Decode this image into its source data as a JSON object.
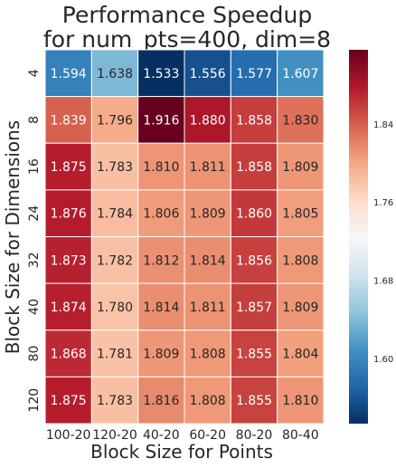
{
  "chart_data": {
    "type": "heatmap",
    "title": "Performance Speedup",
    "subtitle": "for num_pts=400, dim=8",
    "xlabel": "Block Size for Points",
    "ylabel": "Block Size for Dimensions",
    "x_categories": [
      "100-20",
      "120-20",
      "40-20",
      "60-20",
      "80-20",
      "80-40"
    ],
    "y_categories": [
      "4",
      "8",
      "16",
      "24",
      "32",
      "40",
      "80",
      "120"
    ],
    "values": [
      [
        1.594,
        1.638,
        1.533,
        1.556,
        1.577,
        1.607
      ],
      [
        1.839,
        1.796,
        1.916,
        1.88,
        1.858,
        1.83
      ],
      [
        1.875,
        1.783,
        1.81,
        1.811,
        1.858,
        1.809
      ],
      [
        1.876,
        1.784,
        1.806,
        1.809,
        1.86,
        1.805
      ],
      [
        1.873,
        1.782,
        1.812,
        1.814,
        1.856,
        1.808
      ],
      [
        1.874,
        1.78,
        1.814,
        1.811,
        1.857,
        1.809
      ],
      [
        1.868,
        1.781,
        1.809,
        1.808,
        1.855,
        1.804
      ],
      [
        1.875,
        1.783,
        1.816,
        1.808,
        1.855,
        1.81
      ]
    ],
    "value_labels": [
      [
        "1.594",
        "1.638",
        "1.533",
        "1.556",
        "1.577",
        "1.607"
      ],
      [
        "1.839",
        "1.796",
        "1.916",
        "1.880",
        "1.858",
        "1.830"
      ],
      [
        "1.875",
        "1.783",
        "1.810",
        "1.811",
        "1.858",
        "1.809"
      ],
      [
        "1.876",
        "1.784",
        "1.806",
        "1.809",
        "1.860",
        "1.805"
      ],
      [
        "1.873",
        "1.782",
        "1.812",
        "1.814",
        "1.856",
        "1.808"
      ],
      [
        "1.874",
        "1.780",
        "1.814",
        "1.811",
        "1.857",
        "1.809"
      ],
      [
        "1.868",
        "1.781",
        "1.809",
        "1.808",
        "1.855",
        "1.804"
      ],
      [
        "1.875",
        "1.783",
        "1.816",
        "1.808",
        "1.855",
        "1.810"
      ]
    ],
    "colorbar": {
      "colormap": "RdBu_r",
      "vmin": 1.533,
      "vmax": 1.916,
      "ticks": [
        1.6,
        1.68,
        1.76,
        1.84
      ],
      "tick_labels": [
        "1.60",
        "1.68",
        "1.76",
        "1.84"
      ]
    },
    "grid": false,
    "legend": "colorbar-right"
  }
}
